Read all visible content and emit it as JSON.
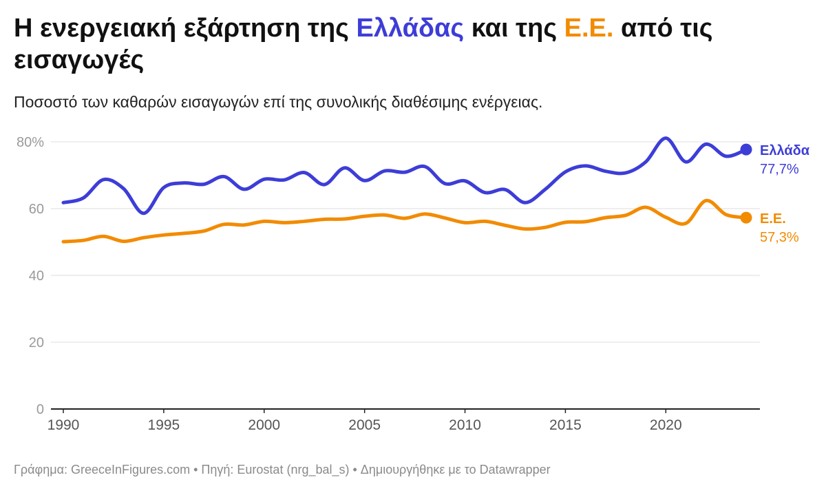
{
  "title": {
    "part1": "Η ενεργειακή εξάρτηση της ",
    "greece": "Ελλάδας",
    "part2": " και της ",
    "eu": "Ε.Ε.",
    "part3": " από τις εισαγωγές"
  },
  "subtitle": "Ποσοστό των καθαρών εισαγωγών επί της συνολικής διαθέσιμης ενέργειας.",
  "footer": "Γράφημα: GreeceInFigures.com • Πηγή: Eurostat (nrg_bal_s) • Δημιουργήθηκε με το Datawrapper",
  "colors": {
    "greece": "#3d3dd8",
    "eu": "#f28b00",
    "grid": "#dddddd",
    "axis": "#222222",
    "tick": "#9a9a9a"
  },
  "chart_data": {
    "type": "line",
    "x": [
      1990,
      1991,
      1992,
      1993,
      1994,
      1995,
      1996,
      1997,
      1998,
      1999,
      2000,
      2001,
      2002,
      2003,
      2004,
      2005,
      2006,
      2007,
      2008,
      2009,
      2010,
      2011,
      2012,
      2013,
      2014,
      2015,
      2016,
      2017,
      2018,
      2019,
      2020,
      2021,
      2022,
      2023,
      2024
    ],
    "series": [
      {
        "name": "Ελλάδα",
        "end_label": "77,7%",
        "values": [
          61.8,
          63.2,
          68.7,
          66.0,
          58.6,
          66.3,
          67.7,
          67.3,
          69.6,
          65.8,
          68.8,
          68.6,
          70.8,
          67.2,
          72.2,
          68.4,
          71.3,
          70.9,
          72.6,
          67.5,
          68.3,
          64.8,
          65.7,
          61.8,
          65.8,
          71.0,
          72.8,
          71.2,
          70.7,
          74.0,
          81.1,
          74.0,
          79.3,
          75.7,
          77.7
        ]
      },
      {
        "name": "Ε.Ε.",
        "end_label": "57,3%",
        "values": [
          50.1,
          50.5,
          51.7,
          50.2,
          51.3,
          52.1,
          52.6,
          53.3,
          55.3,
          55.1,
          56.2,
          55.8,
          56.2,
          56.8,
          56.9,
          57.7,
          58.1,
          57.1,
          58.4,
          57.2,
          55.8,
          56.2,
          55.0,
          53.9,
          54.4,
          55.9,
          56.1,
          57.3,
          58.0,
          60.4,
          57.4,
          55.6,
          62.4,
          58.2,
          57.3
        ]
      }
    ],
    "y_ticks": [
      "0",
      "20",
      "40",
      "60",
      "80%"
    ],
    "ylim": [
      0,
      80
    ],
    "x_ticks": [
      1990,
      1995,
      2000,
      2005,
      2010,
      2015,
      2020
    ],
    "xlim": [
      1990,
      2024
    ],
    "grid": true
  }
}
